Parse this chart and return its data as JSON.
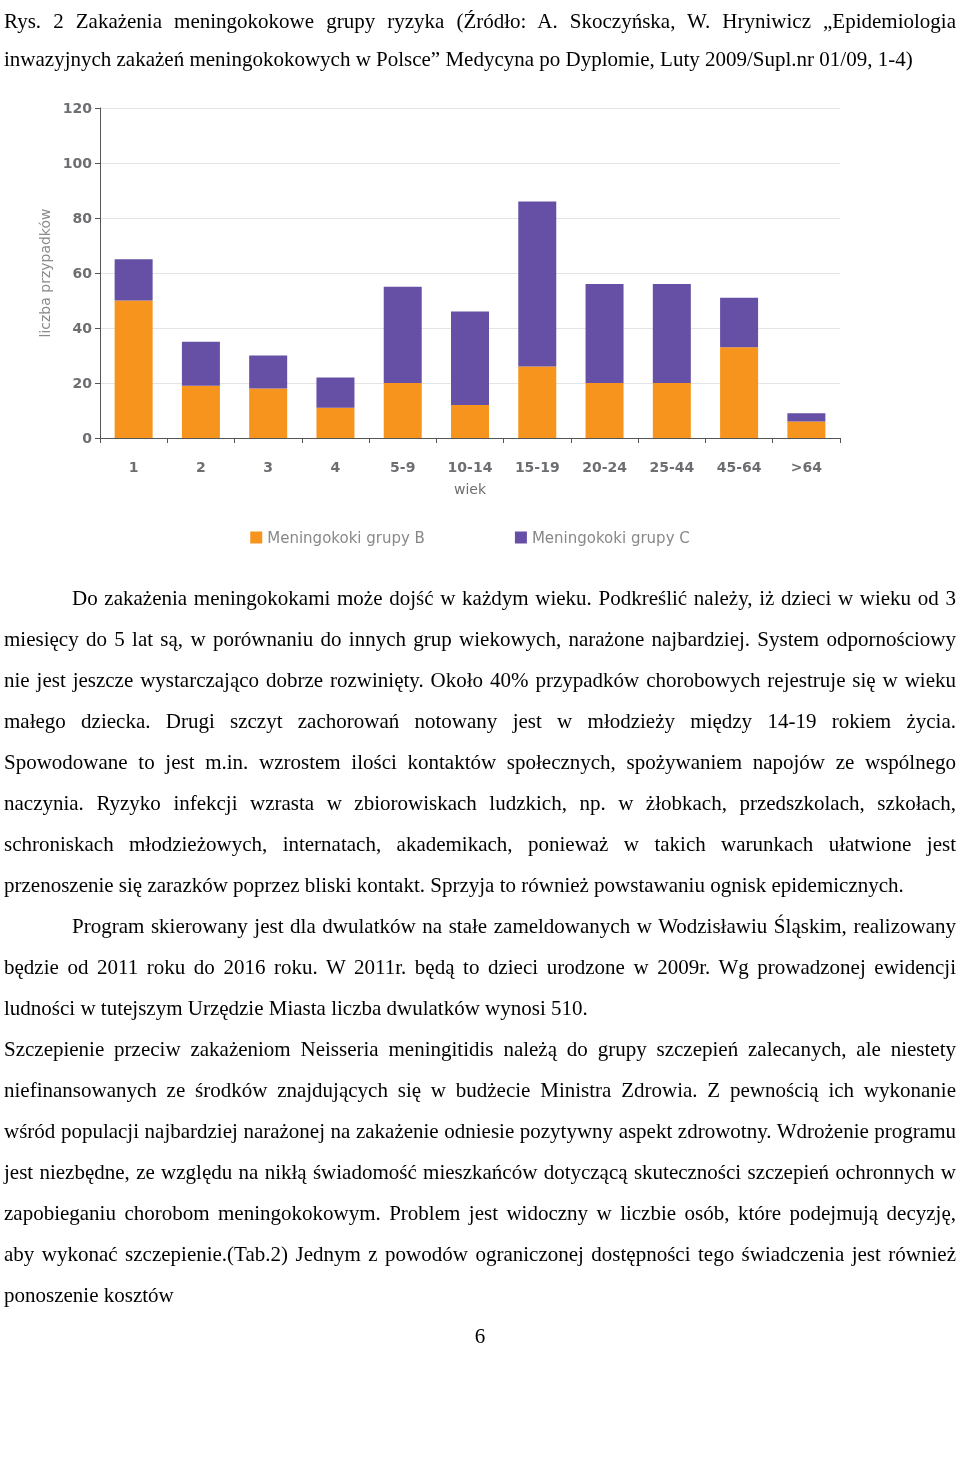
{
  "chart_data": {
    "type": "bar",
    "title": "Rys. 2 Zakażenia meningokokowe grupy ryzyka (Źródło: A. Skoczyńska, W. Hryniwicz „Epidemiologia inwazyjnych zakażeń meningokokowych w Polsce” Medycyna po Dyplomie, Luty 2009/Supl.nr 01/09, 1-4)",
    "xlabel": "wiek",
    "ylabel": "liczba przypadków",
    "categories": [
      "1",
      "2",
      "3",
      "4",
      "5-9",
      "10-14",
      "15-19",
      "20-24",
      "25-44",
      "45-64",
      ">64"
    ],
    "series": [
      {
        "name": "Meningokoki grupy B",
        "color": "#f7941d",
        "values": [
          50,
          19,
          18,
          11,
          20,
          12,
          26,
          20,
          20,
          33,
          6
        ]
      },
      {
        "name": "Meningokoki grupy C",
        "color": "#6650a6",
        "values": [
          15,
          16,
          12,
          11,
          35,
          34,
          60,
          36,
          36,
          18,
          3
        ]
      }
    ],
    "stacked": true,
    "ylim": [
      0,
      120
    ],
    "yticks": [
      0,
      20,
      40,
      60,
      80,
      100,
      120
    ],
    "grid": "y",
    "legend": "bottom",
    "annotations": [
      "Do zakażenia meningokokami może dojść w każdym wieku. Podkreślić należy, iż dzieci w wieku od 3 miesięcy do 5 lat są, w porównaniu do innych grup wiekowych, narażone najbardziej. System odpornościowy nie jest jeszcze wystarczająco dobrze rozwinięty. Około 40% przypadków chorobowych rejestruje się w wieku małego dziecka. Drugi szczyt zachorowań notowany jest w młodzieży między 14-19 rokiem życia. Spowodowane to jest m.in. wzrostem ilości kontaktów społecznych, spożywaniem napojów ze wspólnego naczynia. Ryzyko infekcji wzrasta w zbiorowiskach ludzkich, np. w żłobkach, przedszkolach, szkołach, schroniskach młodzieżowych, internatach, akademikach, ponieważ w takich warunkach ułatwione jest przenoszenie się zarazków poprzez bliski kontakt. Sprzyja to również powstawaniu ognisk epidemicznych.",
      "Program skierowany jest dla dwulatków na stałe zameldowanych w Wodzisławiu Śląskim, realizowany będzie od 2011 roku do 2016 roku. W 2011r. będą to dzieci urodzone w 2009r. Wg prowadzonej ewidencji ludności w tutejszym Urzędzie Miasta liczba dwulatków wynosi 510.",
      "Szczepienie przeciw zakażeniom Neisseria meningitidis należą do grupy szczepień zalecanych, ale niestety niefinansowanych ze środków znajdujących się w budżecie Ministra Zdrowia. Z pewnością ich wykonanie wśród populacji najbardziej narażonej na zakażenie odniesie pozytywny aspekt zdrowotny. Wdrożenie programu jest niezbędne, ze względu na nikłą świadomość mieszkańców dotyczącą skuteczności szczepień ochronnych w zapobieganiu chorobom meningokokowym. Problem jest widoczny w liczbie osób, które podejmują decyzję, aby wykonać szczepienie.(Tab.2) Jednym z powodów ograniczonej dostępności tego świadczenia jest również ponoszenie kosztów",
      "6"
    ]
  }
}
